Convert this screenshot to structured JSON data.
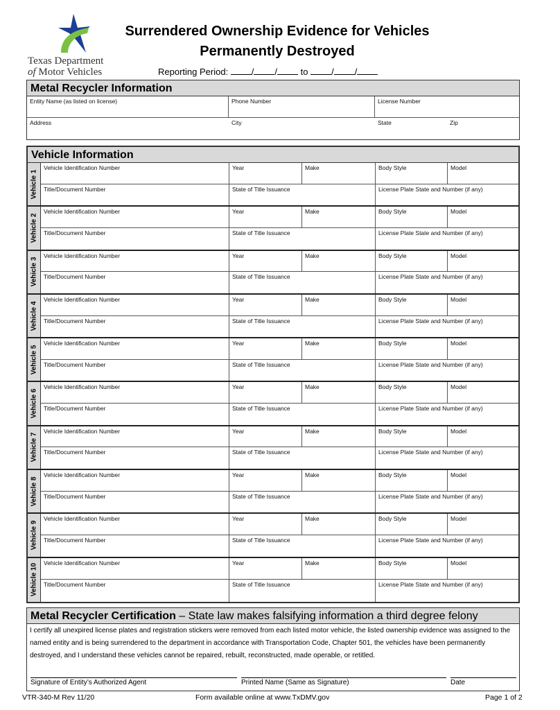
{
  "logo": {
    "line1": "Texas Department",
    "line2_italic": "of",
    "line2": "Motor Vehicles",
    "colors": {
      "blue": "#1c3f94",
      "green": "#7ac143"
    }
  },
  "title": {
    "line1": "Surrendered Ownership Evidence for Vehicles",
    "line2": "Permanently Destroyed"
  },
  "reporting_period": {
    "label": "Reporting Period:",
    "sep": "/",
    "to": "to"
  },
  "recycler": {
    "header": "Metal Recycler Information",
    "entity": "Entity Name (as listed on license)",
    "phone": "Phone Number",
    "license": "License Number",
    "address": "Address",
    "city": "City",
    "state": "State",
    "zip": "Zip"
  },
  "vehicle_info": {
    "header": "Vehicle Information",
    "fields": {
      "vin": "Vehicle Identification Number",
      "year": "Year",
      "make": "Make",
      "body": "Body Style",
      "model": "Model",
      "title": "Title/Document Number",
      "state_title": "State of Title Issuance",
      "plate": "License Plate State and Number (if any)"
    },
    "vehicles": [
      "Vehicle 1",
      "Vehicle 2",
      "Vehicle 3",
      "Vehicle 4",
      "Vehicle 5",
      "Vehicle 6",
      "Vehicle 7",
      "Vehicle 8",
      "Vehicle 9",
      "Vehicle 10"
    ]
  },
  "certification": {
    "header_bold": "Metal Recycler Certification",
    "header_rest": " – State law makes falsifying information a third degree felony",
    "text": "I certify all unexpired license plates and registration stickers were removed from each listed motor vehicle, the listed ownership evidence was assigned to the named entity and is being surrendered to the department in accordance with Transportation Code, Chapter 501, the vehicles have been permanently destroyed, and I understand these vehicles cannot be repaired, rebuilt, reconstructed, made operable, or retitled.",
    "signature": "Signature of Entity’s Authorized Agent",
    "printed": "Printed Name (Same as Signature)",
    "date": "Date"
  },
  "footer": {
    "form": "VTR-340-M Rev 11/20",
    "online": "Form available online at www.TxDMV.gov",
    "page": "Page 1 of 2"
  }
}
